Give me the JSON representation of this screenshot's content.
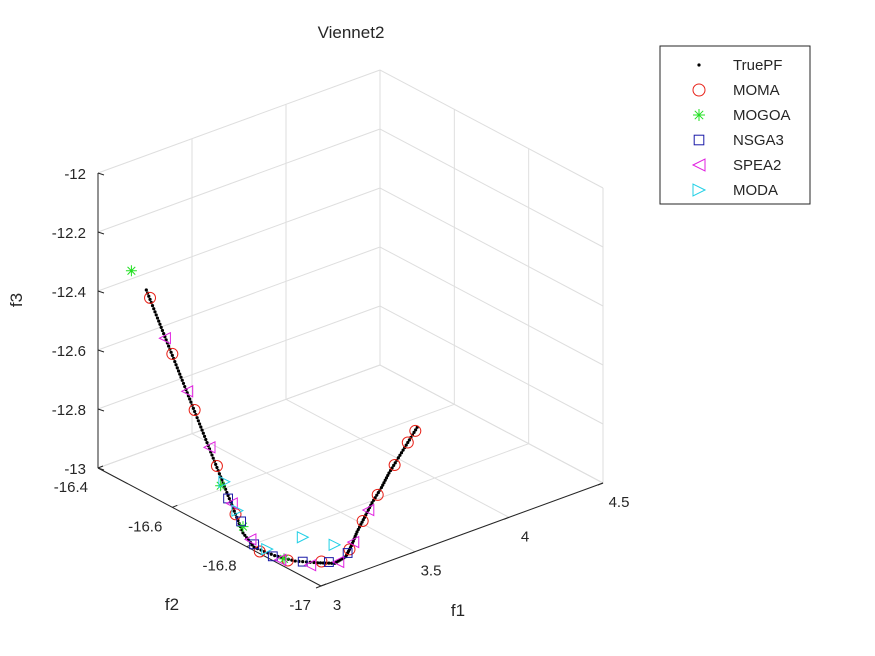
{
  "chart_data": {
    "type": "scatter3d",
    "title": "Viennet2",
    "xlabel": "f1",
    "ylabel": "f2",
    "zlabel": "f3",
    "xlim": [
      3,
      4.5
    ],
    "ylim": [
      -17,
      -16.4
    ],
    "zlim": [
      -13,
      -12
    ],
    "xticks": [
      "3",
      "3.5",
      "4",
      "4.5"
    ],
    "yticks": [
      "-17",
      "-16.8",
      "-16.6",
      "-16.4"
    ],
    "zticks": [
      "-13",
      "-12.8",
      "-12.6",
      "-12.4",
      "-12.2",
      "-12"
    ],
    "grid": true,
    "legend_position": "top-right",
    "series": [
      {
        "name": "TruePF",
        "marker": "dot",
        "color": "#000000",
        "points": [
          [
            3.0,
            -16.53,
            -12.31
          ],
          [
            3.0,
            -16.55,
            -12.36
          ],
          [
            3.0,
            -16.57,
            -12.41
          ],
          [
            3.0,
            -16.59,
            -12.46
          ],
          [
            3.0,
            -16.61,
            -12.51
          ],
          [
            3.0,
            -16.63,
            -12.56
          ],
          [
            3.0,
            -16.65,
            -12.61
          ],
          [
            3.0,
            -16.67,
            -12.66
          ],
          [
            3.0,
            -16.69,
            -12.71
          ],
          [
            3.0,
            -16.71,
            -12.76
          ],
          [
            3.0,
            -16.73,
            -12.81
          ],
          [
            3.0,
            -16.75,
            -12.86
          ],
          [
            3.0,
            -16.77,
            -12.91
          ],
          [
            3.0,
            -16.79,
            -12.96
          ],
          [
            3.02,
            -16.81,
            -13.0
          ],
          [
            3.07,
            -16.84,
            -13.02
          ],
          [
            3.12,
            -16.87,
            -13.03
          ],
          [
            3.18,
            -16.9,
            -13.03
          ],
          [
            3.23,
            -16.92,
            -13.03
          ],
          [
            3.27,
            -16.93,
            -13.01
          ],
          [
            3.3,
            -16.93,
            -12.98
          ],
          [
            3.33,
            -16.93,
            -12.94
          ],
          [
            3.37,
            -16.93,
            -12.9
          ],
          [
            3.41,
            -16.93,
            -12.86
          ],
          [
            3.46,
            -16.93,
            -12.82
          ],
          [
            3.5,
            -16.93,
            -12.78
          ],
          [
            3.55,
            -16.93,
            -12.74
          ],
          [
            3.6,
            -16.93,
            -12.7
          ],
          [
            3.65,
            -16.93,
            -12.66
          ]
        ]
      },
      {
        "name": "MOMA",
        "marker": "circle",
        "color": "#e8231a",
        "points": [
          [
            3.0,
            -16.54,
            -12.33
          ],
          [
            3.0,
            -16.6,
            -12.48
          ],
          [
            3.0,
            -16.66,
            -12.63
          ],
          [
            3.0,
            -16.72,
            -12.78
          ],
          [
            3.0,
            -16.77,
            -12.91
          ],
          [
            3.03,
            -16.82,
            -13.01
          ],
          [
            3.1,
            -16.86,
            -13.03
          ],
          [
            3.2,
            -16.9,
            -13.03
          ],
          [
            3.29,
            -16.93,
            -12.99
          ],
          [
            3.36,
            -16.93,
            -12.91
          ],
          [
            3.44,
            -16.93,
            -12.84
          ],
          [
            3.53,
            -16.93,
            -12.76
          ],
          [
            3.6,
            -16.93,
            -12.7
          ],
          [
            3.64,
            -16.93,
            -12.67
          ]
        ]
      },
      {
        "name": "MOGOA",
        "marker": "star",
        "color": "#22e022",
        "points": [
          [
            2.98,
            -16.5,
            -12.26
          ],
          [
            3.0,
            -16.73,
            -12.84
          ],
          [
            3.02,
            -16.78,
            -12.95
          ],
          [
            3.08,
            -16.86,
            -13.02
          ]
        ]
      },
      {
        "name": "NSGA3",
        "marker": "square",
        "color": "#1a1aa8",
        "points": [
          [
            3.0,
            -16.75,
            -12.87
          ],
          [
            3.01,
            -16.78,
            -12.93
          ],
          [
            3.02,
            -16.81,
            -12.99
          ],
          [
            3.06,
            -16.84,
            -13.02
          ],
          [
            3.14,
            -16.88,
            -13.03
          ],
          [
            3.22,
            -16.91,
            -13.03
          ],
          [
            3.28,
            -16.93,
            -13.0
          ]
        ]
      },
      {
        "name": "SPEA2",
        "marker": "triangle-left",
        "color": "#e020e0",
        "points": [
          [
            3.0,
            -16.58,
            -12.44
          ],
          [
            3.0,
            -16.64,
            -12.58
          ],
          [
            3.0,
            -16.7,
            -12.73
          ],
          [
            3.0,
            -16.76,
            -12.88
          ],
          [
            3.02,
            -16.8,
            -12.98
          ],
          [
            3.08,
            -16.85,
            -13.03
          ],
          [
            3.16,
            -16.89,
            -13.04
          ],
          [
            3.25,
            -16.92,
            -13.03
          ],
          [
            3.31,
            -16.93,
            -12.97
          ],
          [
            3.39,
            -16.93,
            -12.88
          ]
        ]
      },
      {
        "name": "MODA",
        "marker": "triangle-right",
        "color": "#22d0e6",
        "points": [
          [
            3.0,
            -16.74,
            -12.82
          ],
          [
            3.01,
            -16.77,
            -12.9
          ],
          [
            3.05,
            -16.83,
            -13.0
          ],
          [
            3.18,
            -16.86,
            -12.97
          ],
          [
            3.27,
            -16.9,
            -12.99
          ]
        ]
      }
    ]
  }
}
